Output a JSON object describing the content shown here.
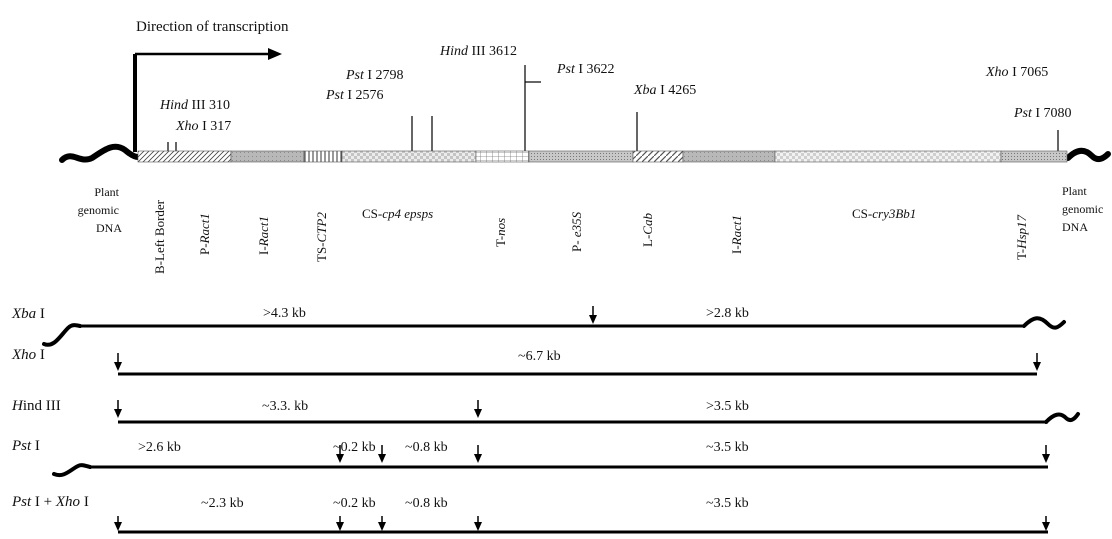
{
  "title": "Direction of transcription",
  "sites": [
    {
      "enzyme": "Hind",
      "rest": " III 310"
    },
    {
      "enzyme": "Xho",
      "rest": " I 317"
    },
    {
      "enzyme": "Pst",
      "rest": " I 2798"
    },
    {
      "enzyme": "Pst",
      "rest": " I 2576"
    },
    {
      "enzyme": "Hind",
      "rest": " III 3612"
    },
    {
      "enzyme": "Pst",
      "rest": " I 3622"
    },
    {
      "enzyme": "Xba",
      "rest": " I 4265"
    },
    {
      "enzyme": "Xho",
      "rest": " I 7065"
    },
    {
      "enzyme": "Pst",
      "rest": " I 7080"
    }
  ],
  "plant_dna_left": [
    "Plant",
    "genomic",
    "DNA"
  ],
  "plant_dna_right": [
    "Plant",
    "genomic",
    "DNA"
  ],
  "elements": [
    {
      "pre": "",
      "it": "",
      "post": "B-Left Border",
      "orient": "v"
    },
    {
      "pre": "P-",
      "it": "Ract1",
      "post": "",
      "orient": "v"
    },
    {
      "pre": "I-",
      "it": "Ract1",
      "post": "",
      "orient": "v"
    },
    {
      "pre": "TS-",
      "it": "CTP2",
      "post": "",
      "orient": "v"
    },
    {
      "pre": "CS-",
      "it": "cp4 epsps",
      "post": "",
      "orient": "h"
    },
    {
      "pre": "T-",
      "it": "nos",
      "post": "",
      "orient": "v"
    },
    {
      "pre": "P- ",
      "it": "e35S",
      "post": "",
      "orient": "v"
    },
    {
      "pre": "L-",
      "it": "Cab",
      "post": "",
      "orient": "v"
    },
    {
      "pre": "I-",
      "it": "Ract1",
      "post": "",
      "orient": "v"
    },
    {
      "pre": "CS-",
      "it": "cry3Bb1",
      "post": "",
      "orient": "h"
    },
    {
      "pre": "T-",
      "it": "Hsp17",
      "post": "",
      "orient": "v"
    }
  ],
  "digests": [
    {
      "enzyme_it": "Xba",
      "enzyme_rest": " I",
      "fragments": [
        ">4.3 kb",
        ">2.8 kb"
      ]
    },
    {
      "enzyme_it": "Xho",
      "enzyme_rest": " I",
      "fragments": [
        "~6.7 kb"
      ]
    },
    {
      "enzyme_it": "H",
      "enzyme_rest": "ind III",
      "fragments": [
        "~3.3. kb",
        ">3.5 kb"
      ]
    },
    {
      "enzyme_it": "Pst",
      "enzyme_rest": " I",
      "fragments": [
        ">2.6 kb",
        "~0.2 kb",
        "~0.8 kb",
        "~3.5 kb"
      ]
    },
    {
      "enzyme_it": "Pst",
      "enzyme_rest": " I + ",
      "enzyme_it2": "Xho",
      "enzyme_rest2": " I",
      "fragments": [
        "~2.3 kb",
        "~0.2 kb",
        "~0.8 kb",
        "~3.5 kb"
      ]
    }
  ]
}
